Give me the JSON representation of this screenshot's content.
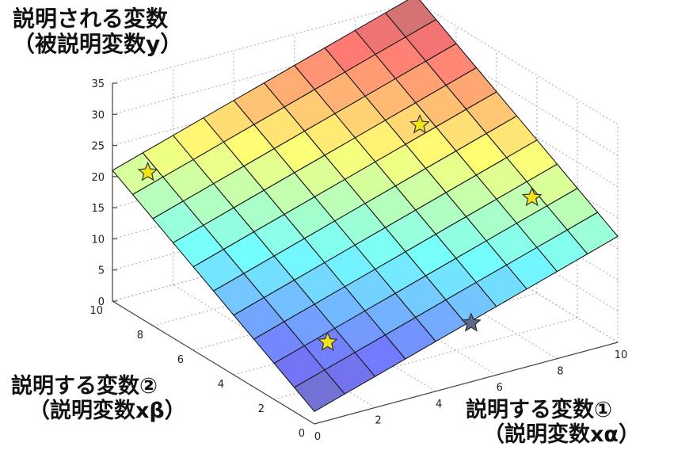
{
  "chart_data": {
    "type": "surface3d",
    "title": "",
    "zlabel": [
      "説明される変数",
      "（被説明変数y）"
    ],
    "x1label": [
      "説明する変数①",
      "（説明変数xα）"
    ],
    "x2label": [
      "説明する変数②",
      "（説明変数xβ）"
    ],
    "x1_ticks": [
      "0",
      "2",
      "4",
      "6",
      "8",
      "10"
    ],
    "x2_ticks": [
      "0",
      "2",
      "4",
      "6",
      "8",
      "10"
    ],
    "z_ticks": [
      "0",
      "5",
      "10",
      "15",
      "20",
      "25",
      "30",
      "35"
    ],
    "xlim": [
      0,
      10
    ],
    "ylim": [
      0,
      10
    ],
    "zlim": [
      0,
      35
    ],
    "grid": true,
    "colormap": "jet",
    "surface": {
      "equation": "y = 2.0 + 1.5*x_alpha + 1.9*x_beta",
      "intercept": 2.0,
      "coef_x_alpha": 1.5,
      "coef_x_beta": 1.9,
      "mesh_steps": 10
    },
    "points": [
      {
        "x_alpha": 0.5,
        "x_beta": 9.0,
        "y": 22,
        "color": "#f2e21a"
      },
      {
        "x_alpha": 7.8,
        "x_beta": 6.5,
        "y": 25,
        "color": "#f2e21a"
      },
      {
        "x_alpha": 9.5,
        "x_beta": 3.5,
        "y": 17,
        "color": "#f2e21a"
      },
      {
        "x_alpha": 1.5,
        "x_beta": 1.6,
        "y": 8,
        "color": "#f2e21a"
      },
      {
        "x_alpha": 5.5,
        "x_beta": 0.5,
        "y": 8,
        "color": "#5a6a8c"
      }
    ]
  }
}
